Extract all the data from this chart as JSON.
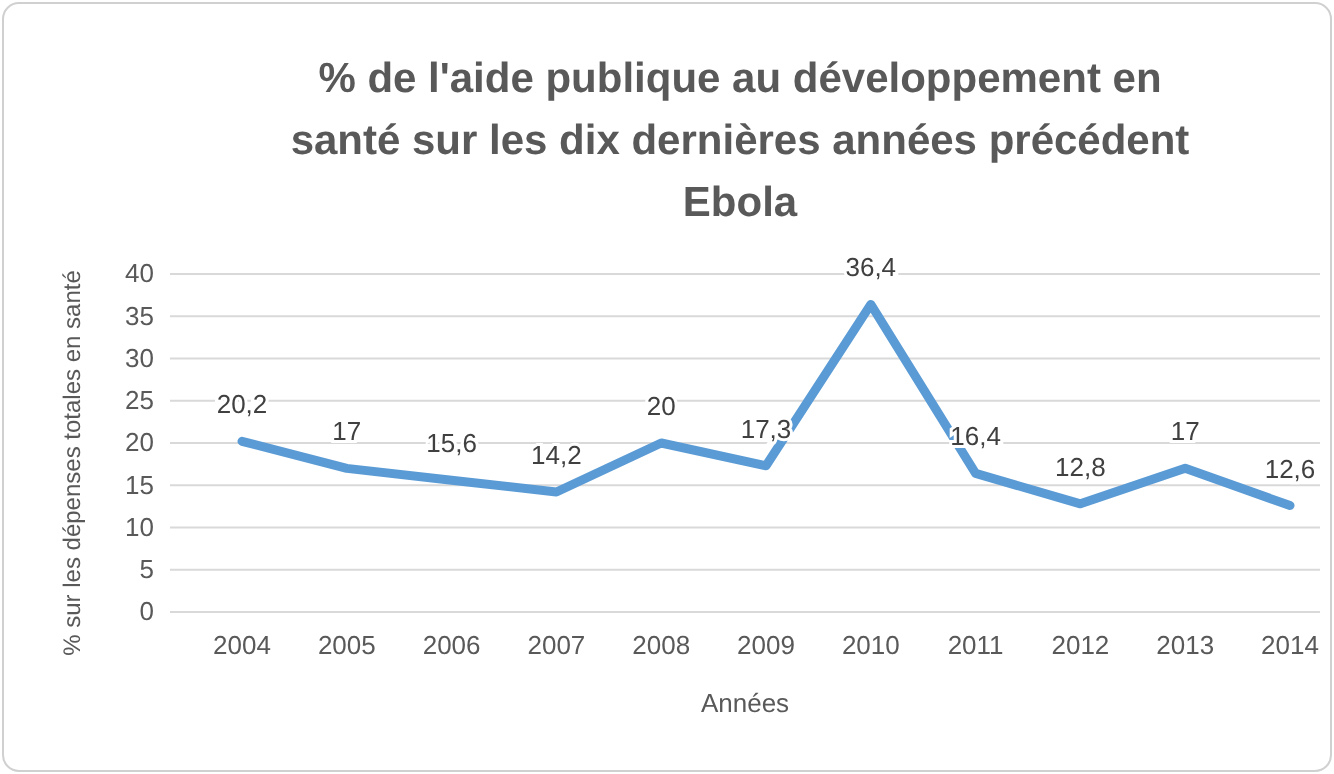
{
  "chart_data": {
    "type": "line",
    "title": "% de l'aide publique au développement en santé sur les dix dernières années précédent Ebola",
    "xlabel": "Années",
    "ylabel": "% sur les dépenses totales en santé",
    "categories": [
      "2004",
      "2005",
      "2006",
      "2007",
      "2008",
      "2009",
      "2010",
      "2011",
      "2012",
      "2013",
      "2014"
    ],
    "series": [
      {
        "color": "#5b9bd5",
        "values": [
          20.2,
          17,
          15.6,
          14.2,
          20,
          17.3,
          36.4,
          16.4,
          12.8,
          17,
          12.6
        ],
        "value_labels": [
          "20,2",
          "17",
          "15,6",
          "14,2",
          "20",
          "17,3",
          "36,4",
          "16,4",
          "12,8",
          "17",
          "12,6"
        ]
      }
    ],
    "ylim": [
      0,
      40
    ],
    "yticks": [
      0,
      5,
      10,
      15,
      20,
      25,
      30,
      35,
      40
    ],
    "grid": "y",
    "marker": "none",
    "line_style": "solid"
  }
}
